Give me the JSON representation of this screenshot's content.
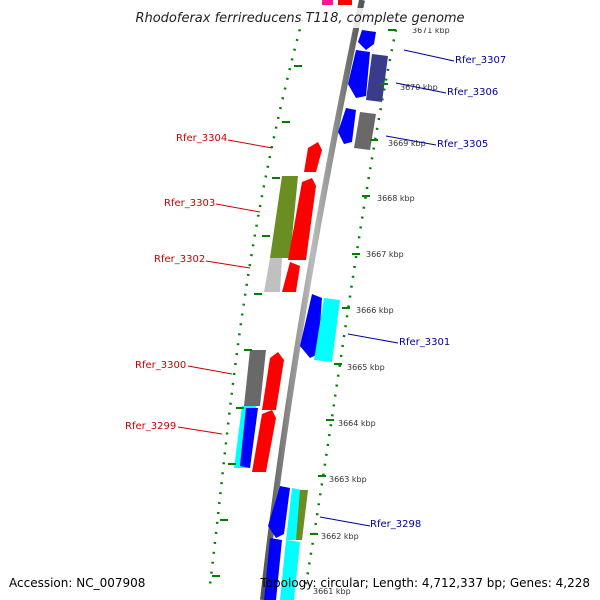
{
  "title": "Rhodoferax ferrireducens T118, complete genome",
  "accession": "Accession: NC_007908",
  "topology": "Topology: circular; Length: 4,712,337 bp; Genes: 4,228",
  "ticks": [
    "3671 kbp",
    "3670 kbp",
    "3669 kbp",
    "3668 kbp",
    "3667 kbp",
    "3666 kbp",
    "3665 kbp",
    "3664 kbp",
    "3663 kbp",
    "3662 kbp",
    "3661 kbp"
  ],
  "labels_forward": [
    "Rfer_3304",
    "Rfer_3303",
    "Rfer_3302",
    "Rfer_3300",
    "Rfer_3299"
  ],
  "labels_reverse": [
    "Rfer_3307",
    "Rfer_3306",
    "Rfer_3305",
    "Rfer_3301",
    "Rfer_3298"
  ],
  "colors": {
    "forward_gene": "#ff0000",
    "reverse_gene": "#0000ff",
    "gene_labels_forward": "#cc0000",
    "gene_labels_reverse": "#000099",
    "backbone": "#888888",
    "ruler": "#008000"
  }
}
